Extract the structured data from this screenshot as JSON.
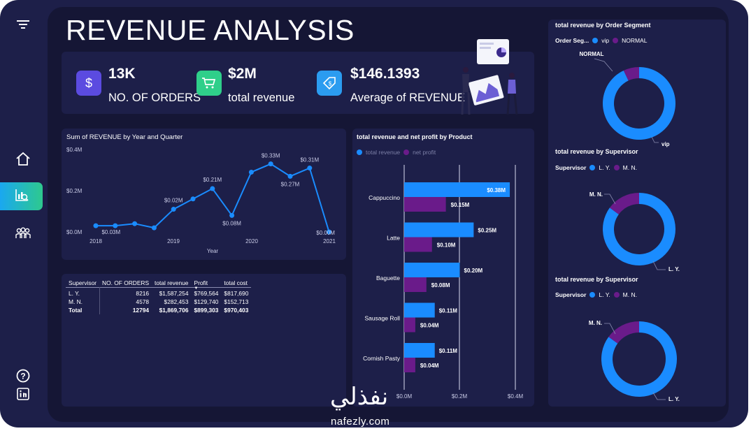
{
  "page_title": "REVENUE ANALYSIS",
  "sidebar": {
    "items": [
      {
        "icon": "filter-icon"
      },
      {
        "icon": "home-icon"
      },
      {
        "icon": "analysis-icon",
        "active": true
      },
      {
        "icon": "people-icon"
      },
      {
        "icon": "help-icon"
      },
      {
        "icon": "linkedin-icon"
      }
    ]
  },
  "kpis": [
    {
      "value": "13K",
      "label": "NO. OF ORDERS",
      "icon": "dollar-icon",
      "color": "#5b4be0"
    },
    {
      "value": "$2M",
      "label": "total revenue",
      "icon": "cart-icon",
      "color": "#2fcf8a"
    },
    {
      "value": "$146.1393",
      "label": "Average of REVENUE",
      "icon": "price-tag-icon",
      "color": "#2b9cf0"
    }
  ],
  "line_chart": {
    "title": "Sum of REVENUE by Year and Quarter",
    "xlabel": "Year",
    "y_ticks": [
      "$0.4M",
      "$0.2M",
      "$0.0M"
    ],
    "x_ticks": [
      "2018",
      "2019",
      "2020",
      "2021"
    ],
    "point_labels": [
      "$0.03M",
      "$0.02M",
      "$0.21M",
      "$0.08M",
      "$0.33M",
      "$0.27M",
      "$0.31M",
      "$0.00M"
    ]
  },
  "table": {
    "headers": [
      "Supervisor",
      "NO. OF ORDERS",
      "total revenue",
      "Profit",
      "total cost"
    ],
    "rows": [
      [
        "L. Y.",
        "8216",
        "$1,587,254",
        "$769,564",
        "$817,690"
      ],
      [
        "M. N.",
        "4578",
        "$282,453",
        "$129,740",
        "$152,713"
      ],
      [
        "Total",
        "12794",
        "$1,869,706",
        "$899,303",
        "$970,403"
      ]
    ]
  },
  "bar_chart": {
    "title": "total revenue and net profit by Product",
    "legend": [
      "total revenue",
      "net profit"
    ],
    "x_ticks": [
      "$0.0M",
      "$0.2M",
      "$0.4M"
    ]
  },
  "donut1": {
    "title": "total revenue by Order Segment",
    "legend_label": "Order Seg...",
    "legend": [
      "vip",
      "NORMAL"
    ],
    "slice_labels": [
      "NORMAL",
      "vip"
    ]
  },
  "donut2": {
    "title": "total revenue by Supervisor",
    "legend_label": "Supervisor",
    "legend": [
      "L. Y.",
      "M. N."
    ],
    "slice_labels": [
      "M. N.",
      "L. Y."
    ]
  },
  "donut3": {
    "title": "total revenue by Supervisor",
    "legend_label": "Supervisor",
    "legend": [
      "L. Y.",
      "M. N."
    ],
    "slice_labels": [
      "M. N.",
      "L. Y."
    ]
  },
  "watermark": {
    "arabic": "نفذلي",
    "latin": "nafezly.com"
  },
  "colors": {
    "primary": "#1a8cff",
    "secondary": "#6a1b8a",
    "panel": "#1d1f49",
    "background": "#151635"
  },
  "chart_data": [
    {
      "type": "line",
      "title": "Sum of REVENUE by Year and Quarter",
      "xlabel": "Year",
      "ylabel": "",
      "x_ticks": [
        "2018",
        "2019",
        "2020",
        "2021"
      ],
      "ylim": [
        0,
        0.4
      ],
      "series": [
        {
          "values": [
            0.03,
            0.03,
            0.04,
            0.02,
            0.11,
            0.16,
            0.21,
            0.08,
            0.29,
            0.33,
            0.27,
            0.31,
            0.0
          ]
        }
      ],
      "grid": false
    },
    {
      "type": "bar",
      "title": "total revenue and net profit by Product",
      "categories": [
        "Cappuccino",
        "Latte",
        "Baguette",
        "Sausage Roll",
        "Cornish Pasty"
      ],
      "series": [
        {
          "name": "total revenue",
          "values": [
            0.38,
            0.25,
            0.2,
            0.11,
            0.11
          ],
          "labels": [
            "$0.38M",
            "$0.25M",
            "$0.20M",
            "$0.11M",
            "$0.11M"
          ],
          "color": "#1a8cff"
        },
        {
          "name": "net profit",
          "values": [
            0.15,
            0.1,
            0.08,
            0.04,
            0.04
          ],
          "labels": [
            "$0.15M",
            "$0.10M",
            "$0.08M",
            "$0.04M",
            "$0.04M"
          ],
          "color": "#6a1b8a"
        }
      ],
      "xlim": [
        0,
        0.4
      ],
      "legend": "top-left"
    },
    {
      "type": "pie",
      "title": "total revenue by Order Segment",
      "labels": [
        "vip",
        "NORMAL"
      ],
      "values": [
        93,
        7
      ]
    },
    {
      "type": "pie",
      "title": "total revenue by Supervisor",
      "labels": [
        "L. Y.",
        "M. N."
      ],
      "values": [
        85,
        15
      ]
    },
    {
      "type": "pie",
      "title": "total revenue by Supervisor",
      "labels": [
        "L. Y.",
        "M. N."
      ],
      "values": [
        85,
        15
      ]
    }
  ]
}
